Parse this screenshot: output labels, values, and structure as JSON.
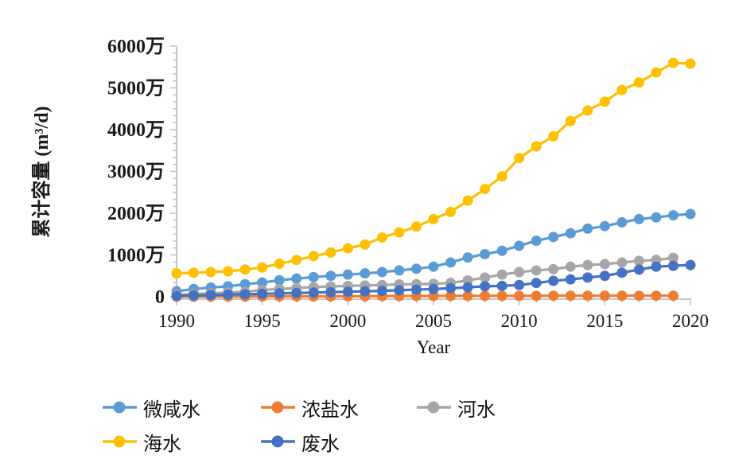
{
  "page": {
    "background": "#ffffff"
  },
  "colors": {
    "axis": "#BFBFBF",
    "text": "#1A1A1A",
    "brackish_blue": "#5B9BD5",
    "brine_orange": "#ED7D31",
    "river_gray": "#A6A6A6",
    "sea_yellow": "#FFC000",
    "waste_blue": "#4472C4"
  },
  "axis": {
    "y_title": "累计容量 (m³/d)",
    "x_title": "Year",
    "y_tick_labels": [
      "0",
      "1000万",
      "2000万",
      "3000万",
      "4000万",
      "5000万",
      "6000万"
    ],
    "y_tick_values": [
      0,
      1000,
      2000,
      3000,
      4000,
      5000,
      6000
    ],
    "x_tick_labels": [
      "1990",
      "1995",
      "2000",
      "2005",
      "2010",
      "2015",
      "2020"
    ],
    "x_tick_values": [
      1990,
      1995,
      2000,
      2005,
      2010,
      2015,
      2020
    ]
  },
  "chart_data": {
    "type": "line",
    "title": "",
    "xlabel": "Year",
    "ylabel": "累计容量 (m³/d)",
    "y_unit": "万 m³/d",
    "ylim": [
      0,
      6000
    ],
    "xlim": [
      1990,
      2020
    ],
    "grid": false,
    "legend_position": "bottom-left",
    "x": [
      1990,
      1991,
      1992,
      1993,
      1994,
      1995,
      1996,
      1997,
      1998,
      1999,
      2000,
      2001,
      2002,
      2003,
      2004,
      2005,
      2006,
      2007,
      2008,
      2009,
      2010,
      2011,
      2012,
      2013,
      2014,
      2015,
      2016,
      2017,
      2018,
      2019,
      2020
    ],
    "series": [
      {
        "name": "微咸水",
        "color": "#5B9BD5",
        "values": [
          130,
          185,
          220,
          250,
          300,
          340,
          395,
          435,
          470,
          500,
          530,
          560,
          590,
          630,
          670,
          720,
          820,
          940,
          1020,
          1100,
          1220,
          1340,
          1430,
          1520,
          1630,
          1690,
          1780,
          1860,
          1900,
          1950,
          1980
        ]
      },
      {
        "name": "浓盐水",
        "color": "#ED7D31",
        "values": [
          5,
          5,
          5,
          5,
          5,
          8,
          8,
          10,
          10,
          10,
          12,
          12,
          15,
          15,
          18,
          18,
          20,
          20,
          20,
          22,
          22,
          22,
          25,
          25,
          25,
          25,
          25,
          25,
          25,
          25,
          null
        ]
      },
      {
        "name": "河水",
        "color": "#A6A6A6",
        "values": [
          50,
          65,
          80,
          100,
          120,
          160,
          185,
          210,
          230,
          245,
          260,
          270,
          280,
          295,
          300,
          310,
          330,
          390,
          460,
          530,
          590,
          630,
          660,
          720,
          760,
          780,
          820,
          860,
          880,
          930,
          null
        ]
      },
      {
        "name": "海水",
        "color": "#FFC000",
        "values": [
          560,
          575,
          590,
          610,
          650,
          700,
          790,
          880,
          970,
          1060,
          1160,
          1250,
          1420,
          1540,
          1680,
          1860,
          2030,
          2300,
          2580,
          2880,
          3320,
          3600,
          3840,
          4210,
          4460,
          4670,
          4950,
          5130,
          5370,
          5600,
          5580
        ]
      },
      {
        "name": "废水",
        "color": "#4472C4",
        "values": [
          20,
          30,
          40,
          50,
          60,
          70,
          80,
          90,
          100,
          110,
          120,
          130,
          140,
          155,
          170,
          185,
          205,
          225,
          250,
          260,
          280,
          330,
          380,
          415,
          460,
          500,
          575,
          650,
          720,
          740,
          760
        ]
      }
    ]
  },
  "legend": {
    "items": [
      {
        "label": "微咸水",
        "color": "#5B9BD5"
      },
      {
        "label": "浓盐水",
        "color": "#ED7D31"
      },
      {
        "label": "河水",
        "color": "#A6A6A6"
      },
      {
        "label": "海水",
        "color": "#FFC000"
      },
      {
        "label": "废水",
        "color": "#4472C4"
      }
    ],
    "rows": [
      [
        0,
        1,
        2
      ],
      [
        3,
        4
      ]
    ]
  }
}
